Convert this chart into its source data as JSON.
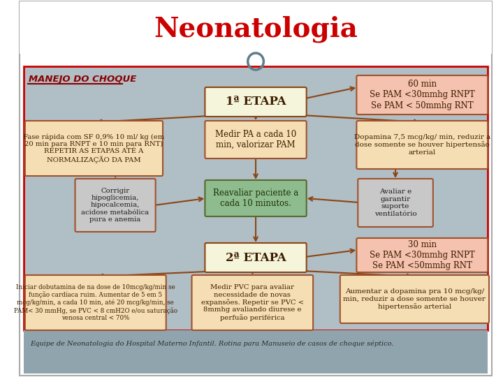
{
  "title": "Neonatologia",
  "title_color": "#cc0000",
  "subtitle_label": "MANEJO DO CHOQUE",
  "bg_main": "#b0bec5",
  "bg_header": "#ffffff",
  "bg_footer": "#90a4ae",
  "border_color": "#cc0000",
  "box_border": "#a0522d",
  "etapa1_text": "1ª ETAPA",
  "etapa2_text": "2ª ETAPA",
  "etapa_bg": "#f5f5dc",
  "etapa_border": "#8b4513",
  "reassess_bg": "#8fbc8f",
  "reassess_border": "#556b2f",
  "reassess_text": "Reavaliar paciente a\ncada 10 minutos.",
  "box_bg": "#f5deb3",
  "pink_box_bg": "#f4c2ae",
  "gray_box_bg": "#c8c8c8",
  "box1_text": "Fase rápida com SF 0,9% 10 ml/ kg (em\n20 min para RNPT e 10 min para RNT)\nREPETIR AS ETAPAS ATÉ A\nNORMALIZAÇÃO DA PAM",
  "box2_text": "Medir PA a cada 10\nmin, valorizar PAM",
  "box3_text": "Dopamina 7,5 mcg/kg/ min, reduzir a\ndose somente se houver hipertensão\narterial",
  "box4_text": "Corrigir\nhipoglicemia,\nhipocalcemia,\nacidose metabólica\npura e anemia",
  "box5_text": "Avaliar e\ngarantir\nsuporte\nventilatório",
  "box60_text": "60 min\nSe PAM <30mmhg RNPT\nSe PAM < 50mmhg RNT",
  "box30_text": "30 min\nSe PAM <30mmhg RNPT\nSe PAM <50mmhg RNT",
  "box6_text": "Iniciar dobutamina de na dose de 10mcg/kg/min se\nfunção cardíaca ruim. Aumentar de 5 em 5\nmcg/kg/min, a cada 10 min, até 20 mcg/kg/min, se\nPAM< 30 mmHg, se PVC < 8 cmH2O e/ou saturação\nvenosa central < 70%",
  "box7_text": "Medir PVC para avaliar\nnecessidade de novas\nexpansões. Repetir se PVC <\n8mmhg avaliando diurese e\nperfuão periférica",
  "box8_text": "Aumentar a dopamina pra 10 mcg/kg/\nmin, reduzir a dose somente se houver\nhipertensão arterial",
  "footer_text": "Equipe de Neonatologia do Hospital Materno Infantil. Rotina para Manuseio de casos de choque séptico.",
  "arrow_color": "#8b4513",
  "circle_color": "#607d8b"
}
